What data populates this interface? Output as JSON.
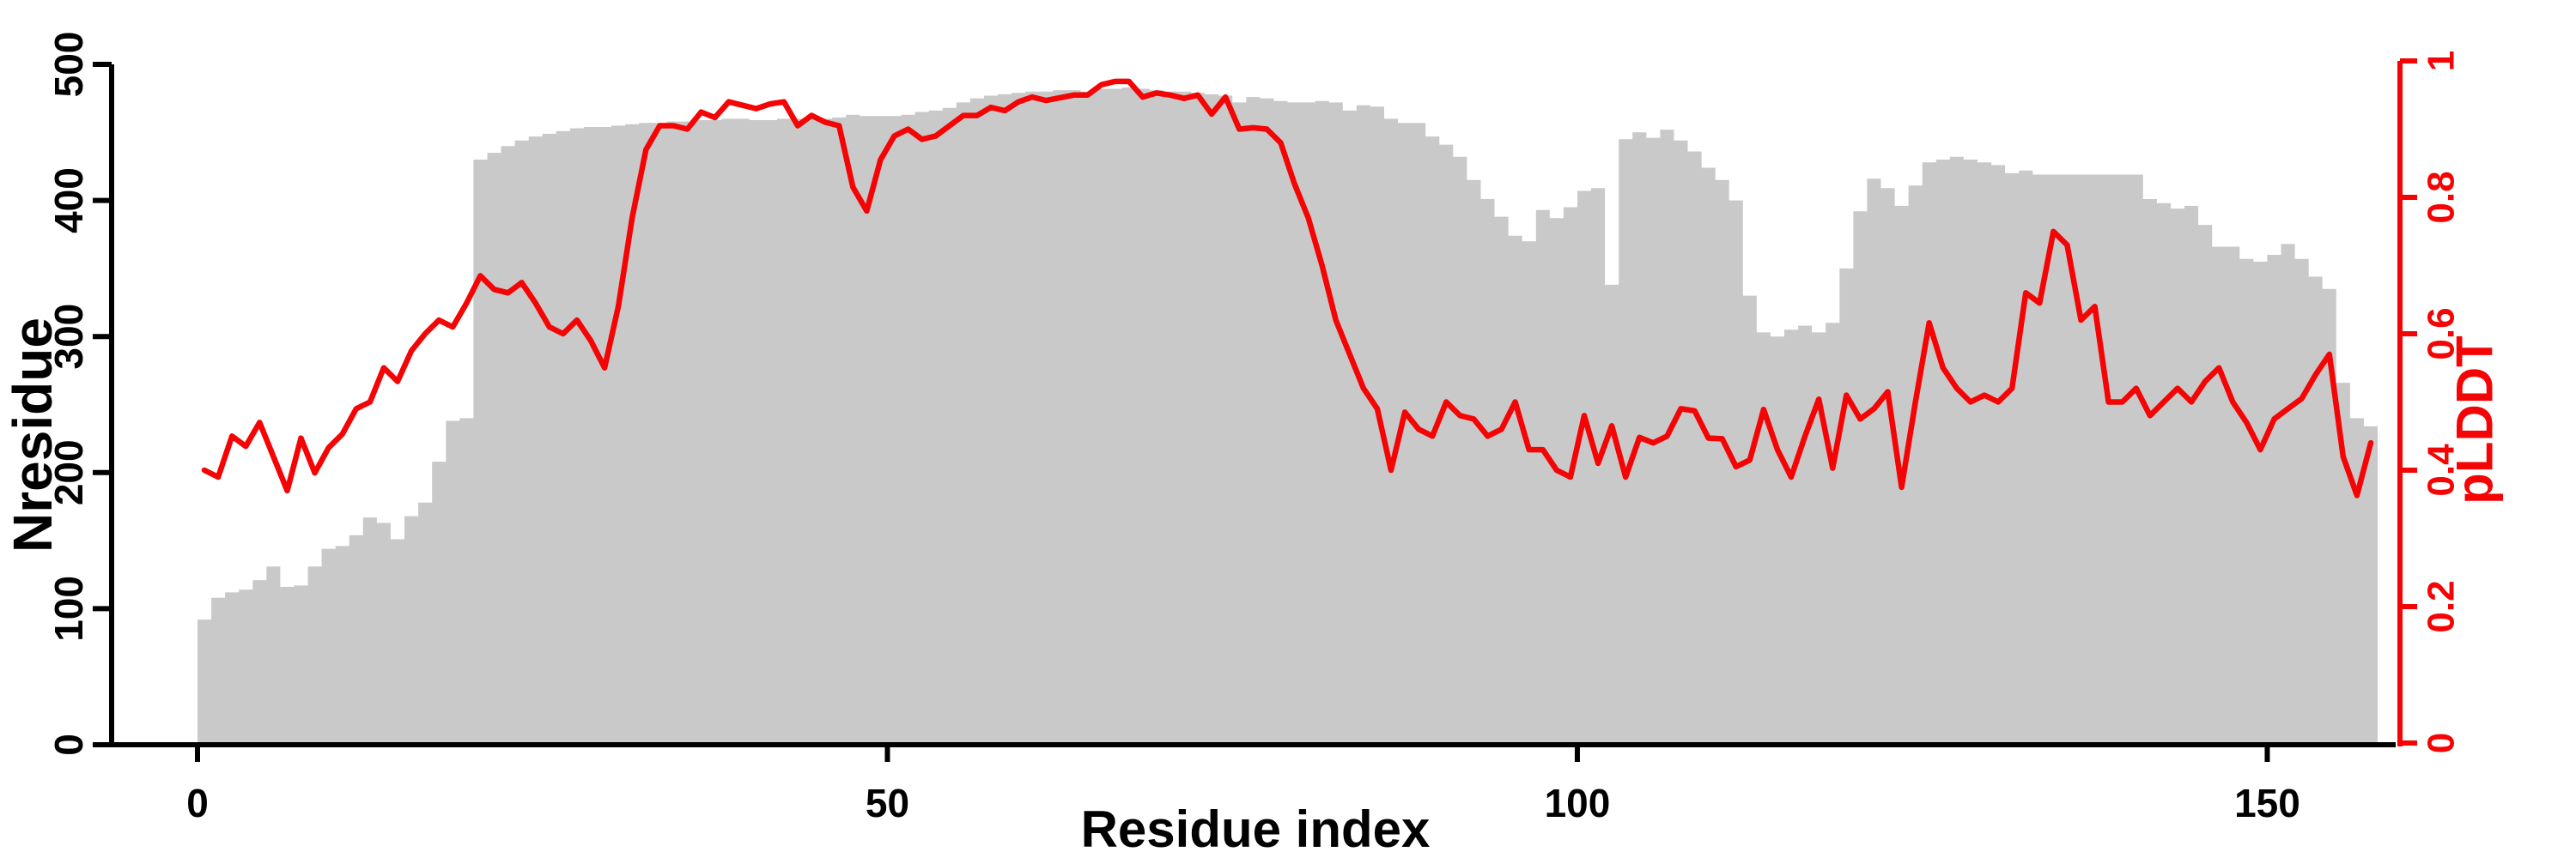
{
  "figure": {
    "x_axis": {
      "label": "Residue index",
      "ticks": [
        0,
        50,
        100,
        150
      ],
      "range": [
        0,
        158
      ]
    },
    "y_axis_left": {
      "label": "Nresidue",
      "ticks": [
        0,
        100,
        200,
        300,
        400,
        500
      ],
      "range": [
        0,
        500
      ],
      "color": "#000000"
    },
    "y_axis_right": {
      "label": "pLDDT",
      "ticks": [
        0,
        0.2,
        0.4,
        0.6,
        0.8,
        1
      ],
      "range": [
        0,
        1
      ],
      "color": "#f40404"
    }
  },
  "colors": {
    "background": "#ffffff",
    "bars": "#c9c9c9",
    "line": "#f40404",
    "axis": "#000000"
  },
  "chart_data": {
    "type": "bar",
    "subtype": "bar+line dual axis",
    "title": "",
    "xlabel": "Residue index",
    "ylabel_left": "Nresidue",
    "ylabel_right": "pLDDT",
    "x_first": 1,
    "x_step": 1,
    "x_count": 158,
    "grid": false,
    "legend": false,
    "series": [
      {
        "name": "Nresidue",
        "type": "bar",
        "axis": "left",
        "ylim": [
          0,
          500
        ],
        "values": [
          92,
          108,
          112,
          114,
          121,
          131,
          116,
          117,
          131,
          144,
          146,
          154,
          167,
          163,
          151,
          168,
          178,
          208,
          238,
          240,
          430,
          435,
          440,
          444,
          447,
          449,
          451,
          453,
          454,
          454,
          455,
          456,
          457,
          457,
          458,
          458,
          459,
          459,
          460,
          460,
          459,
          459,
          460,
          460,
          460,
          460,
          461,
          463,
          462,
          462,
          462,
          463,
          465,
          466,
          468,
          472,
          475,
          477,
          478,
          479,
          480,
          480,
          481,
          481,
          480,
          482,
          482,
          483,
          482,
          481,
          480,
          480,
          479,
          478,
          477,
          472,
          476,
          475,
          473,
          472,
          472,
          473,
          472,
          466,
          470,
          469,
          460,
          457,
          457,
          447,
          441,
          432,
          415,
          401,
          388,
          374,
          370,
          393,
          387,
          395,
          407,
          409,
          338,
          445,
          450,
          446,
          452,
          444,
          436,
          424,
          415,
          400,
          330,
          303,
          300,
          305,
          308,
          303,
          310,
          350,
          392,
          416,
          409,
          396,
          411,
          428,
          430,
          432,
          430,
          428,
          426,
          420,
          422,
          419,
          419,
          419,
          419,
          419,
          419,
          419,
          419,
          401,
          398,
          394,
          396,
          382,
          366,
          366,
          357,
          355,
          360,
          368,
          357,
          344,
          335,
          266,
          240,
          234
        ]
      },
      {
        "name": "pLDDT",
        "type": "line",
        "axis": "right",
        "ylim": [
          0,
          1
        ],
        "values": [
          0.4,
          0.39,
          0.45,
          0.435,
          0.47,
          0.42,
          0.37,
          0.447,
          0.396,
          0.433,
          0.453,
          0.49,
          0.5,
          0.55,
          0.53,
          0.575,
          0.6,
          0.62,
          0.61,
          0.645,
          0.685,
          0.665,
          0.66,
          0.675,
          0.645,
          0.61,
          0.6,
          0.62,
          0.59,
          0.55,
          0.64,
          0.77,
          0.87,
          0.905,
          0.905,
          0.9,
          0.925,
          0.917,
          0.94,
          0.935,
          0.93,
          0.937,
          0.94,
          0.905,
          0.92,
          0.91,
          0.905,
          0.815,
          0.78,
          0.855,
          0.89,
          0.9,
          0.885,
          0.89,
          0.905,
          0.92,
          0.92,
          0.932,
          0.927,
          0.94,
          0.947,
          0.942,
          0.946,
          0.95,
          0.95,
          0.965,
          0.97,
          0.97,
          0.947,
          0.953,
          0.95,
          0.945,
          0.95,
          0.922,
          0.947,
          0.9,
          0.902,
          0.9,
          0.88,
          0.82,
          0.77,
          0.7,
          0.62,
          0.57,
          0.52,
          0.49,
          0.4,
          0.485,
          0.46,
          0.45,
          0.5,
          0.48,
          0.475,
          0.45,
          0.46,
          0.5,
          0.43,
          0.43,
          0.4,
          0.39,
          0.48,
          0.41,
          0.465,
          0.39,
          0.448,
          0.44,
          0.45,
          0.49,
          0.487,
          0.447,
          0.446,
          0.405,
          0.415,
          0.489,
          0.43,
          0.39,
          0.45,
          0.504,
          0.403,
          0.51,
          0.475,
          0.49,
          0.515,
          0.375,
          0.5,
          0.616,
          0.55,
          0.52,
          0.5,
          0.51,
          0.5,
          0.52,
          0.66,
          0.645,
          0.75,
          0.73,
          0.62,
          0.64,
          0.5,
          0.5,
          0.52,
          0.48,
          0.5,
          0.52,
          0.5,
          0.53,
          0.55,
          0.5,
          0.47,
          0.43,
          0.475,
          0.49,
          0.505,
          0.54,
          0.57,
          0.42,
          0.363,
          0.44
        ]
      }
    ]
  }
}
